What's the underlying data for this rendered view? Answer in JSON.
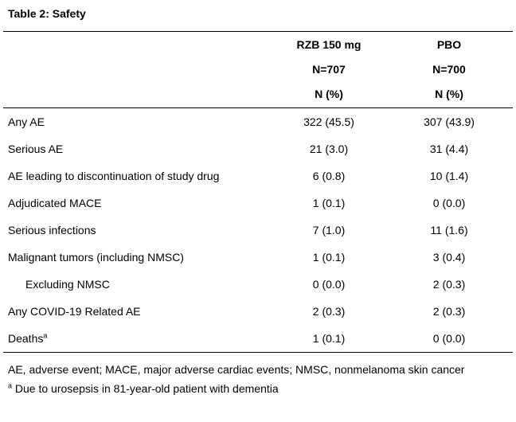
{
  "title": "Table 2: Safety",
  "table": {
    "columns": [
      {
        "name": "RZB 150 mg",
        "n": "N=707",
        "unit": "N (%)"
      },
      {
        "name": "PBO",
        "n": "N=700",
        "unit": "N (%)"
      }
    ],
    "rows": [
      {
        "label": "Any AE",
        "rzb": "322 (45.5)",
        "pbo": "307 (43.9)"
      },
      {
        "label": "Serious AE",
        "rzb": "21 (3.0)",
        "pbo": "31 (4.4)"
      },
      {
        "label": "AE leading to discontinuation of study drug",
        "rzb": "6 (0.8)",
        "pbo": "10 (1.4)"
      },
      {
        "label": "Adjudicated MACE",
        "rzb": "1 (0.1)",
        "pbo": "0 (0.0)"
      },
      {
        "label": "Serious infections",
        "rzb": "7 (1.0)",
        "pbo": "11 (1.6)"
      },
      {
        "label": "Malignant tumors (including NMSC)",
        "rzb": "1 (0.1)",
        "pbo": "3 (0.4)"
      },
      {
        "label": "Excluding NMSC",
        "rzb": "0 (0.0)",
        "pbo": "2 (0.3)",
        "indent": true
      },
      {
        "label": "Any COVID-19 Related AE",
        "rzb": "2 (0.3)",
        "pbo": "2 (0.3)"
      },
      {
        "label": "Deaths",
        "sup": "a",
        "rzb": "1 (0.1)",
        "pbo": "0 (0.0)"
      }
    ]
  },
  "footnotes": {
    "abbreviations": "AE, adverse event; MACE, major adverse cardiac events; NMSC, nonmelanoma skin cancer",
    "note_sup": "a",
    "note_text": "Due to urosepsis in 81-year-old patient with dementia"
  }
}
